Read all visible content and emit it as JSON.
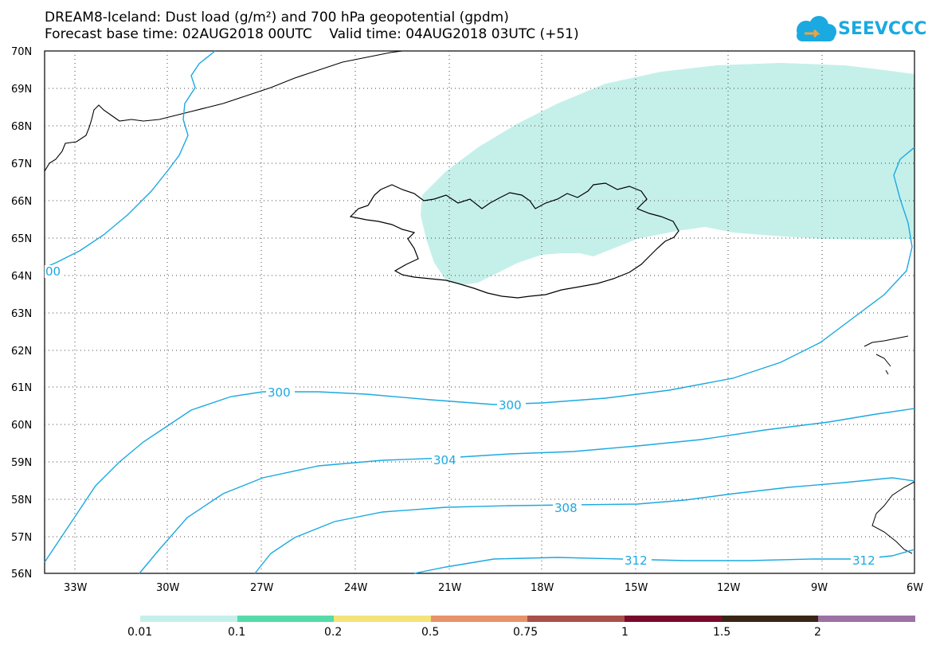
{
  "header": {
    "title_line1": "DREAM8-Iceland: Dust load (g/m²) and 700 hPa geopotential (gpdm)",
    "title_line2": "Forecast base time: 02AUG2018 00UTC    Valid time: 04AUG2018 03UTC (+51)"
  },
  "logo": {
    "text": "SEEVCCC",
    "color": "#1ba9e1"
  },
  "map": {
    "lat_labels": [
      "70N",
      "69N",
      "68N",
      "67N",
      "66N",
      "65N",
      "64N",
      "63N",
      "62N",
      "61N",
      "60N",
      "59N",
      "58N",
      "57N",
      "56N"
    ],
    "lon_labels": [
      "33W",
      "30W",
      "27W",
      "24W",
      "21W",
      "18W",
      "15W",
      "12W",
      "9W",
      "6W"
    ],
    "contour_labels": [
      "00",
      "300",
      "300",
      "304",
      "308",
      "312",
      "312"
    ],
    "dust_color": "#c5f0ea",
    "contour_color": "#1ba9e1"
  },
  "colorbar": {
    "colors": [
      "#c5f0ea",
      "#55dba9",
      "#f4e37a",
      "#e8926a",
      "#a8504a",
      "#7a0a2c",
      "#3a2515",
      "#9b72a3"
    ],
    "labels": [
      "0.01",
      "0.1",
      "0.2",
      "0.5",
      "0.75",
      "1",
      "1.5",
      "2"
    ]
  }
}
